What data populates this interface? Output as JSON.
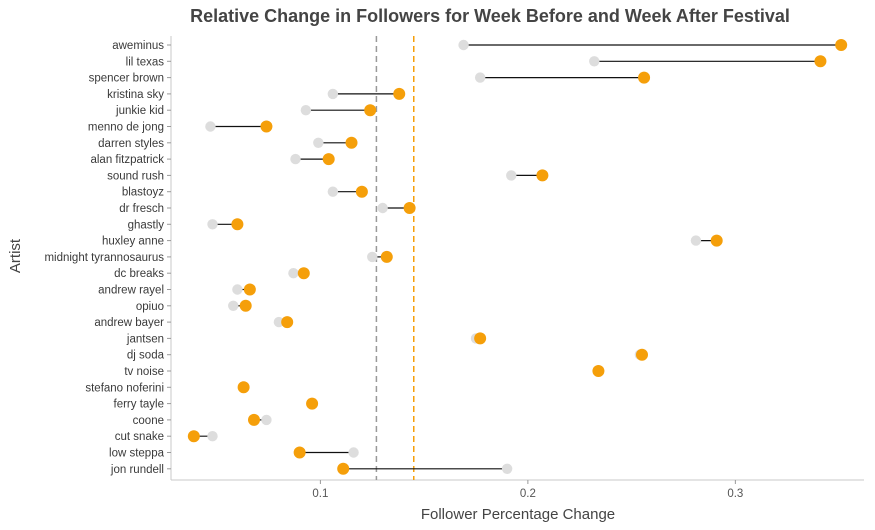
{
  "chart_data": {
    "type": "dumbbell",
    "title": "Relative Change in Followers for Week Before and Week After Festival",
    "xlabel": "Follower Percentage Change",
    "ylabel": "Artist",
    "xlim": [
      0.028,
      0.362
    ],
    "xticks": [
      0.1,
      0.2,
      0.3
    ],
    "xtick_labels": [
      "0.1",
      "0.2",
      "0.3"
    ],
    "colors": {
      "before": "#dddddd",
      "after": "#f59f0a",
      "connector": "#111111",
      "before_mean_line": "#999999",
      "after_mean_line": "#f59f0a"
    },
    "reference_lines": {
      "before_mean": 0.127,
      "after_mean": 0.145
    },
    "artists": [
      {
        "name": "aweminus",
        "before": 0.169,
        "after": 0.351
      },
      {
        "name": "lil texas",
        "before": 0.232,
        "after": 0.341
      },
      {
        "name": "spencer brown",
        "before": 0.177,
        "after": 0.256
      },
      {
        "name": "kristina sky",
        "before": 0.106,
        "after": 0.138
      },
      {
        "name": "junkie kid",
        "before": 0.093,
        "after": 0.124
      },
      {
        "name": "menno de jong",
        "before": 0.047,
        "after": 0.074
      },
      {
        "name": "darren styles",
        "before": 0.099,
        "after": 0.115
      },
      {
        "name": "alan fitzpatrick",
        "before": 0.088,
        "after": 0.104
      },
      {
        "name": "sound rush",
        "before": 0.192,
        "after": 0.207
      },
      {
        "name": "blastoyz",
        "before": 0.106,
        "after": 0.12
      },
      {
        "name": "dr fresch",
        "before": 0.13,
        "after": 0.143
      },
      {
        "name": "ghastly",
        "before": 0.048,
        "after": 0.06
      },
      {
        "name": "huxley anne",
        "before": 0.281,
        "after": 0.291
      },
      {
        "name": "midnight tyrannosaurus",
        "before": 0.125,
        "after": 0.132
      },
      {
        "name": "dc breaks",
        "before": 0.087,
        "after": 0.092
      },
      {
        "name": "andrew rayel",
        "before": 0.06,
        "after": 0.066
      },
      {
        "name": "opiuo",
        "before": 0.058,
        "after": 0.064
      },
      {
        "name": "andrew bayer",
        "before": 0.08,
        "after": 0.084
      },
      {
        "name": "jantsen",
        "before": 0.175,
        "after": 0.177
      },
      {
        "name": "dj soda",
        "before": 0.254,
        "after": 0.255
      },
      {
        "name": "tv noise",
        "before": 0.234,
        "after": 0.234
      },
      {
        "name": "stefano noferini",
        "before": 0.063,
        "after": 0.063
      },
      {
        "name": "ferry tayle",
        "before": 0.096,
        "after": 0.096
      },
      {
        "name": "coone",
        "before": 0.074,
        "after": 0.068
      },
      {
        "name": "cut snake",
        "before": 0.048,
        "after": 0.039
      },
      {
        "name": "low steppa",
        "before": 0.116,
        "after": 0.09
      },
      {
        "name": "jon rundell",
        "before": 0.19,
        "after": 0.111
      }
    ]
  }
}
